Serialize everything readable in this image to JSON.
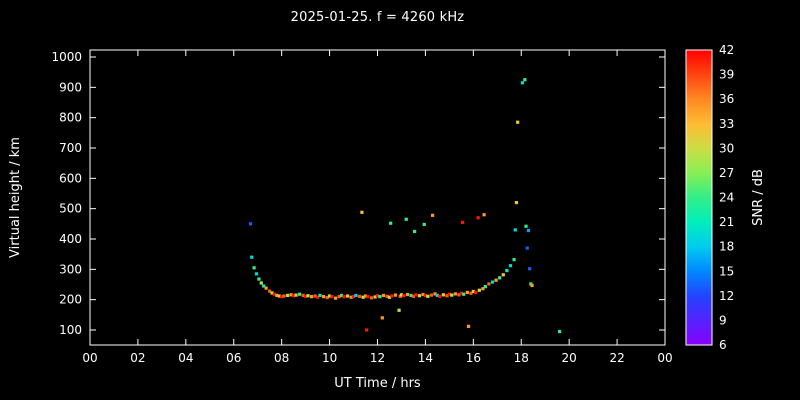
{
  "chart_data": {
    "type": "scatter",
    "title": "2025-01-25. f = 4260 kHz",
    "xlabel": "UT Time / hrs",
    "ylabel": "Virtual height / km",
    "xlim_hrs": [
      0,
      24
    ],
    "ylim_km": [
      100,
      1000
    ],
    "x_tick_step_hrs": 2,
    "x_tick_labels": [
      "00",
      "02",
      "04",
      "06",
      "08",
      "10",
      "12",
      "14",
      "16",
      "18",
      "20",
      "22",
      "00"
    ],
    "y_ticks_km": [
      100,
      200,
      300,
      400,
      500,
      600,
      700,
      800,
      900,
      1000
    ],
    "grid": "off",
    "background_color": "#000000",
    "frame_color": "#ffffff",
    "text_color": "#ffffff",
    "colorbar": {
      "label": "SNR / dB",
      "min": 6,
      "max": 42,
      "ticks": [
        6,
        9,
        12,
        15,
        18,
        21,
        24,
        27,
        30,
        33,
        36,
        39,
        42
      ],
      "stops": [
        {
          "v": 6,
          "c": "#8800ff"
        },
        {
          "v": 9,
          "c": "#5522ff"
        },
        {
          "v": 12,
          "c": "#2244ff"
        },
        {
          "v": 15,
          "c": "#0088ff"
        },
        {
          "v": 18,
          "c": "#00ccee"
        },
        {
          "v": 21,
          "c": "#00eebb"
        },
        {
          "v": 24,
          "c": "#33ee88"
        },
        {
          "v": 27,
          "c": "#88ee55"
        },
        {
          "v": 30,
          "c": "#ccdd44"
        },
        {
          "v": 33,
          "c": "#ffbb33"
        },
        {
          "v": 36,
          "c": "#ff8822"
        },
        {
          "v": 39,
          "c": "#ff4411"
        },
        {
          "v": 42,
          "c": "#ff0000"
        }
      ]
    },
    "points": {
      "columns": [
        "t_hrs",
        "h_km",
        "snr_db"
      ],
      "rows": [
        [
          6.7,
          450,
          13
        ],
        [
          6.75,
          340,
          19
        ],
        [
          6.85,
          305,
          24
        ],
        [
          6.95,
          285,
          19
        ],
        [
          7.05,
          268,
          24
        ],
        [
          7.15,
          255,
          29
        ],
        [
          7.25,
          245,
          22
        ],
        [
          7.35,
          238,
          35
        ],
        [
          7.5,
          228,
          38
        ],
        [
          7.6,
          222,
          29
        ],
        [
          7.7,
          218,
          41
        ],
        [
          7.8,
          214,
          35
        ],
        [
          7.9,
          212,
          32
        ],
        [
          8.0,
          210,
          41
        ],
        [
          8.1,
          212,
          38
        ],
        [
          8.25,
          214,
          29
        ],
        [
          8.4,
          216,
          35
        ],
        [
          8.5,
          213,
          41
        ],
        [
          8.6,
          215,
          32
        ],
        [
          8.75,
          218,
          24
        ],
        [
          8.9,
          214,
          38
        ],
        [
          9.0,
          211,
          41
        ],
        [
          9.1,
          213,
          29
        ],
        [
          9.25,
          210,
          35
        ],
        [
          9.4,
          212,
          38
        ],
        [
          9.5,
          208,
          41
        ],
        [
          9.6,
          214,
          22
        ],
        [
          9.75,
          210,
          35
        ],
        [
          9.9,
          207,
          38
        ],
        [
          10.0,
          212,
          29
        ],
        [
          10.1,
          210,
          41
        ],
        [
          10.25,
          205,
          35
        ],
        [
          10.4,
          210,
          38
        ],
        [
          10.5,
          214,
          24
        ],
        [
          10.6,
          210,
          41
        ],
        [
          10.75,
          212,
          32
        ],
        [
          10.9,
          208,
          35
        ],
        [
          11.0,
          210,
          41
        ],
        [
          11.1,
          214,
          19
        ],
        [
          11.25,
          211,
          38
        ],
        [
          11.35,
          488,
          32
        ],
        [
          11.4,
          208,
          29
        ],
        [
          11.5,
          212,
          35
        ],
        [
          11.55,
          100,
          41
        ],
        [
          11.6,
          210,
          41
        ],
        [
          11.75,
          206,
          38
        ],
        [
          11.9,
          209,
          32
        ],
        [
          12.0,
          213,
          41
        ],
        [
          12.1,
          210,
          24
        ],
        [
          12.2,
          140,
          35
        ],
        [
          12.25,
          214,
          35
        ],
        [
          12.4,
          211,
          38
        ],
        [
          12.5,
          208,
          29
        ],
        [
          12.55,
          452,
          24
        ],
        [
          12.6,
          212,
          41
        ],
        [
          12.75,
          215,
          35
        ],
        [
          12.9,
          165,
          29
        ],
        [
          12.95,
          211,
          38
        ],
        [
          13.0,
          216,
          29
        ],
        [
          13.1,
          213,
          41
        ],
        [
          13.2,
          465,
          24
        ],
        [
          13.25,
          217,
          35
        ],
        [
          13.4,
          214,
          24
        ],
        [
          13.5,
          211,
          38
        ],
        [
          13.55,
          425,
          24
        ],
        [
          13.6,
          216,
          41
        ],
        [
          13.75,
          213,
          32
        ],
        [
          13.9,
          217,
          35
        ],
        [
          13.95,
          448,
          24
        ],
        [
          14.0,
          214,
          41
        ],
        [
          14.1,
          211,
          29
        ],
        [
          14.25,
          215,
          38
        ],
        [
          14.3,
          478,
          35
        ],
        [
          14.4,
          219,
          35
        ],
        [
          14.5,
          214,
          19
        ],
        [
          14.6,
          211,
          41
        ],
        [
          14.75,
          216,
          32
        ],
        [
          14.9,
          213,
          38
        ],
        [
          15.0,
          218,
          41
        ],
        [
          15.1,
          215,
          29
        ],
        [
          15.25,
          219,
          35
        ],
        [
          15.4,
          216,
          38
        ],
        [
          15.5,
          221,
          41
        ],
        [
          15.55,
          455,
          41
        ],
        [
          15.6,
          218,
          24
        ],
        [
          15.75,
          224,
          35
        ],
        [
          15.8,
          112,
          35
        ],
        [
          15.9,
          221,
          38
        ],
        [
          16.0,
          227,
          32
        ],
        [
          16.1,
          224,
          41
        ],
        [
          16.2,
          470,
          41
        ],
        [
          16.25,
          231,
          29
        ],
        [
          16.4,
          236,
          35
        ],
        [
          16.45,
          480,
          35
        ],
        [
          16.5,
          243,
          24
        ],
        [
          16.65,
          252,
          38
        ],
        [
          16.8,
          258,
          19
        ],
        [
          16.95,
          264,
          35
        ],
        [
          17.1,
          272,
          24
        ],
        [
          17.25,
          282,
          32
        ],
        [
          17.4,
          296,
          22
        ],
        [
          17.55,
          312,
          19
        ],
        [
          17.7,
          332,
          24
        ],
        [
          17.75,
          430,
          19
        ],
        [
          17.8,
          520,
          32
        ],
        [
          17.85,
          785,
          32
        ],
        [
          18.05,
          915,
          19
        ],
        [
          18.15,
          925,
          24
        ],
        [
          18.2,
          442,
          24
        ],
        [
          18.25,
          370,
          13
        ],
        [
          18.3,
          428,
          16
        ],
        [
          18.35,
          302,
          13
        ],
        [
          18.4,
          252,
          22
        ],
        [
          18.45,
          247,
          35
        ],
        [
          19.6,
          95,
          24
        ]
      ]
    }
  }
}
